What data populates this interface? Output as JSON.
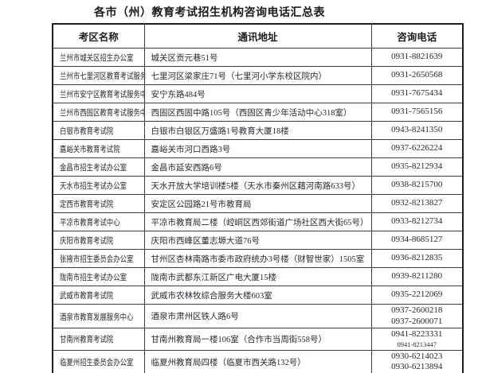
{
  "title": "各市（州）教育考试招生机构咨询电话汇总表",
  "table": {
    "headers": [
      "考区名称",
      "通讯地址",
      "咨询电话"
    ],
    "rows": [
      {
        "name": "兰州市城关区招生办公室",
        "address": "城关区贡元巷51号",
        "phones": [
          {
            "text": "0931-8821639"
          }
        ]
      },
      {
        "name": "兰州市七里河区教育考试服务中心",
        "address": "七里河区梁家庄71号（七里河小学东校区院内）",
        "phones": [
          {
            "text": "0931-2650568"
          }
        ]
      },
      {
        "name": "兰州市安宁区教育考试服务中心",
        "address": "安宁东路484号",
        "phones": [
          {
            "text": "0931-7675434"
          }
        ]
      },
      {
        "name": "兰州市西固区教育考试服务中心",
        "address": "西固区西固中路105号（西固区青少年活动中心318室）",
        "phones": [
          {
            "text": "0931-7565156"
          }
        ]
      },
      {
        "name": "白银市教育考试院",
        "address": "白银市白银区万盛路1号教育大厦18楼",
        "phones": [
          {
            "text": "0943-8241350"
          }
        ]
      },
      {
        "name": "嘉峪关市教育考试院",
        "address": "嘉峪关市河口西路3号",
        "phones": [
          {
            "text": "0937-6226224"
          }
        ]
      },
      {
        "name": "金昌市招生考试办公室",
        "address": "金昌市延安西路6号",
        "phones": [
          {
            "text": "0935-8212934"
          }
        ]
      },
      {
        "name": "天水市招生考试办公室",
        "address": "天水开放大学培训楼5楼（天水市秦州区藉河南路633号）",
        "phones": [
          {
            "text": "0938-8215700"
          }
        ]
      },
      {
        "name": "定西市教育考试院",
        "address": "安定区公园路21号市教育局",
        "phones": [
          {
            "text": "0932-8213827"
          }
        ]
      },
      {
        "name": "平凉市教育考试中心",
        "address": "平凉市教育局二楼（崆峒区西郊街道广场社区西大街65号）",
        "phones": [
          {
            "text": "0933-8212734"
          }
        ]
      },
      {
        "name": "庆阳市教育考试院",
        "address": "庆阳市西峰区董志塬大道76号",
        "phones": [
          {
            "text": "0934-8685127"
          }
        ]
      },
      {
        "name": "张掖市招生委员会办公室",
        "address": "甘州区杏林南路市委市政府统办3号楼（财智世家）1505室",
        "phones": [
          {
            "text": "0936-8212835"
          }
        ]
      },
      {
        "name": "陇南市招生考试办公室",
        "address": "陇南市武都东江新区广电大厦15楼",
        "phones": [
          {
            "text": "0939-8211280"
          }
        ]
      },
      {
        "name": "武威市教育考试院",
        "address": "武威市农林牧综合服务大楼603室",
        "phones": [
          {
            "text": "0935-2212069"
          }
        ]
      },
      {
        "name": "酒泉市教育发展服务中心",
        "address": "酒泉市肃州区铁人路6号",
        "phones": [
          {
            "text": "0937-2600218"
          },
          {
            "text": "0937-2600071"
          }
        ]
      },
      {
        "name": "甘南州教育考试院",
        "address": "甘南州教育局一楼106室（合作市当周街558号）",
        "phones": [
          {
            "text": "0941-8223331"
          },
          {
            "text": "0941-8213447",
            "small": true
          }
        ]
      },
      {
        "name": "临夏州招生委员会办公室",
        "address": "临夏州教育局四楼（临夏市西关路132号）",
        "phones": [
          {
            "text": "0930-6214023"
          },
          {
            "text": "0930-6213894"
          }
        ]
      }
    ]
  }
}
